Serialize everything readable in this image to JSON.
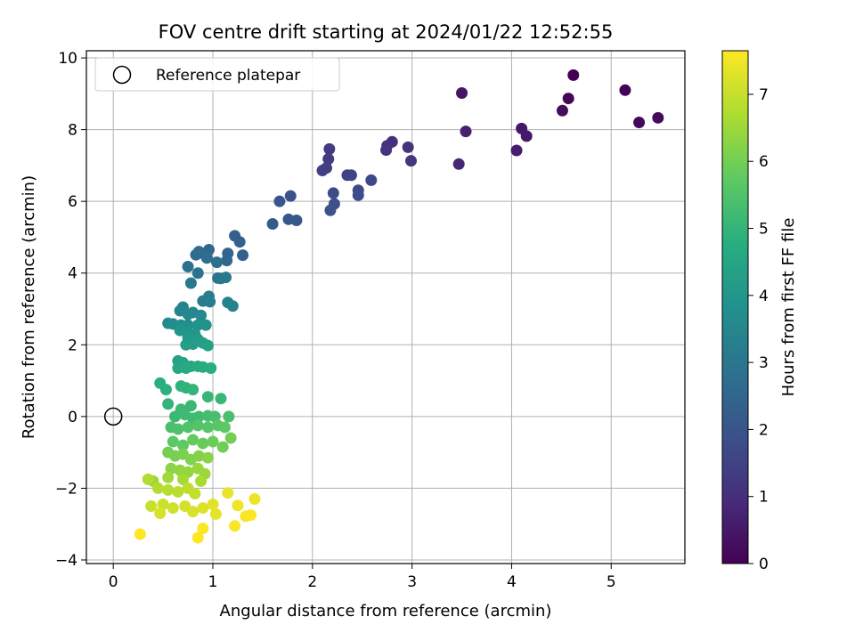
{
  "chart_data": {
    "type": "scatter",
    "title": "FOV centre drift starting at 2024/01/22 12:52:55",
    "xlabel": "Angular distance from reference (arcmin)",
    "ylabel": "Rotation from reference (arcmin)",
    "xlim": [
      -0.27,
      5.74
    ],
    "ylim": [
      -4.1,
      10.2
    ],
    "xticks": [
      0,
      1,
      2,
      3,
      4,
      5
    ],
    "yticks": [
      -4,
      -2,
      0,
      2,
      4,
      6,
      8,
      10
    ],
    "grid": true,
    "legend": {
      "position": "top-left",
      "entries": [
        "Reference platepar"
      ]
    },
    "reference_point": {
      "x": 0,
      "y": 0,
      "label": "Reference platepar"
    },
    "colorbar": {
      "label": "Hours from first FF file",
      "colormap": "viridis",
      "range": [
        0,
        7.65
      ],
      "ticks": [
        0,
        1,
        2,
        3,
        4,
        5,
        6,
        7
      ]
    },
    "points": [
      [
        4.62,
        9.52,
        0.0
      ],
      [
        5.14,
        9.1,
        0.05
      ],
      [
        4.57,
        8.87,
        0.1
      ],
      [
        5.28,
        8.2,
        0.15
      ],
      [
        5.47,
        8.33,
        0.2
      ],
      [
        4.51,
        8.53,
        0.25
      ],
      [
        3.5,
        9.02,
        0.45
      ],
      [
        4.1,
        8.03,
        0.5
      ],
      [
        4.15,
        7.82,
        0.55
      ],
      [
        4.05,
        7.42,
        0.6
      ],
      [
        3.54,
        7.95,
        0.7
      ],
      [
        3.47,
        7.04,
        0.8
      ],
      [
        2.8,
        7.66,
        1.0
      ],
      [
        2.75,
        7.55,
        1.05
      ],
      [
        2.96,
        7.51,
        1.1
      ],
      [
        2.74,
        7.43,
        1.15
      ],
      [
        2.99,
        7.13,
        1.2
      ],
      [
        2.17,
        7.46,
        1.3
      ],
      [
        2.16,
        7.18,
        1.35
      ],
      [
        2.14,
        6.93,
        1.4
      ],
      [
        2.1,
        6.86,
        1.45
      ],
      [
        2.35,
        6.73,
        1.5
      ],
      [
        2.39,
        6.73,
        1.55
      ],
      [
        2.59,
        6.59,
        1.65
      ],
      [
        2.46,
        6.31,
        1.7
      ],
      [
        2.21,
        6.23,
        1.75
      ],
      [
        2.46,
        6.17,
        1.8
      ],
      [
        2.22,
        5.93,
        1.85
      ],
      [
        2.18,
        5.75,
        1.9
      ],
      [
        1.78,
        6.15,
        1.95
      ],
      [
        1.67,
        6.0,
        2.0
      ],
      [
        1.76,
        5.5,
        2.05
      ],
      [
        1.84,
        5.47,
        2.1
      ],
      [
        1.6,
        5.37,
        2.15
      ],
      [
        1.22,
        5.04,
        2.3
      ],
      [
        1.27,
        4.87,
        2.35
      ],
      [
        1.3,
        4.5,
        2.4
      ],
      [
        1.15,
        4.55,
        2.45
      ],
      [
        1.14,
        4.35,
        2.5
      ],
      [
        0.96,
        4.65,
        2.55
      ],
      [
        0.9,
        4.55,
        2.6
      ],
      [
        0.83,
        4.51,
        2.65
      ],
      [
        0.86,
        4.6,
        2.7
      ],
      [
        0.94,
        4.42,
        2.75
      ],
      [
        1.04,
        4.3,
        2.8
      ],
      [
        0.75,
        4.18,
        2.85
      ],
      [
        0.85,
        4.0,
        2.9
      ],
      [
        1.05,
        3.86,
        2.95
      ],
      [
        1.08,
        3.85,
        3.0
      ],
      [
        1.13,
        3.88,
        3.05
      ],
      [
        0.78,
        3.72,
        3.1
      ],
      [
        0.96,
        3.35,
        3.15
      ],
      [
        0.9,
        3.22,
        3.2
      ],
      [
        0.97,
        3.2,
        3.25
      ],
      [
        1.15,
        3.18,
        3.3
      ],
      [
        1.2,
        3.08,
        3.35
      ],
      [
        0.7,
        3.05,
        3.4
      ],
      [
        0.67,
        2.95,
        3.45
      ],
      [
        0.8,
        2.9,
        3.5
      ],
      [
        0.75,
        2.85,
        3.55
      ],
      [
        0.88,
        2.82,
        3.6
      ],
      [
        0.55,
        2.6,
        3.65
      ],
      [
        0.6,
        2.58,
        3.7
      ],
      [
        0.68,
        2.55,
        3.75
      ],
      [
        0.75,
        2.55,
        3.8
      ],
      [
        0.85,
        2.55,
        3.85
      ],
      [
        0.93,
        2.55,
        3.9
      ],
      [
        0.67,
        2.4,
        3.95
      ],
      [
        0.75,
        2.35,
        4.0
      ],
      [
        0.82,
        2.3,
        4.05
      ],
      [
        0.75,
        2.2,
        4.1
      ],
      [
        0.85,
        2.15,
        4.15
      ],
      [
        0.8,
        2.02,
        4.2
      ],
      [
        0.73,
        2.0,
        4.25
      ],
      [
        0.9,
        2.05,
        4.3
      ],
      [
        0.95,
        1.98,
        4.35
      ],
      [
        0.65,
        1.55,
        4.4
      ],
      [
        0.7,
        1.5,
        4.45
      ],
      [
        0.78,
        1.4,
        4.5
      ],
      [
        0.65,
        1.35,
        4.55
      ],
      [
        0.73,
        1.35,
        4.6
      ],
      [
        0.85,
        1.4,
        4.65
      ],
      [
        0.9,
        1.38,
        4.7
      ],
      [
        0.98,
        1.35,
        4.75
      ],
      [
        0.47,
        0.93,
        4.8
      ],
      [
        0.53,
        0.75,
        4.85
      ],
      [
        0.68,
        0.85,
        4.9
      ],
      [
        0.73,
        0.8,
        4.95
      ],
      [
        0.8,
        0.75,
        5.0
      ],
      [
        0.55,
        0.35,
        5.0
      ],
      [
        0.95,
        0.55,
        5.05
      ],
      [
        1.08,
        0.5,
        5.1
      ],
      [
        0.78,
        0.3,
        5.1
      ],
      [
        0.68,
        0.2,
        5.15
      ],
      [
        0.62,
        0.0,
        5.15
      ],
      [
        0.72,
        0.05,
        5.2
      ],
      [
        0.8,
        -0.05,
        5.2
      ],
      [
        0.86,
        0.0,
        5.25
      ],
      [
        0.95,
        0.02,
        5.3
      ],
      [
        1.02,
        0.0,
        5.35
      ],
      [
        1.16,
        0.0,
        5.4
      ],
      [
        0.58,
        -0.3,
        5.4
      ],
      [
        0.65,
        -0.35,
        5.45
      ],
      [
        0.75,
        -0.3,
        5.5
      ],
      [
        0.85,
        -0.25,
        5.55
      ],
      [
        0.95,
        -0.3,
        5.6
      ],
      [
        1.05,
        -0.25,
        5.65
      ],
      [
        1.12,
        -0.3,
        5.7
      ],
      [
        0.6,
        -0.7,
        5.7
      ],
      [
        0.7,
        -0.8,
        5.75
      ],
      [
        0.8,
        -0.65,
        5.8
      ],
      [
        0.9,
        -0.75,
        5.85
      ],
      [
        1.0,
        -0.7,
        5.9
      ],
      [
        1.1,
        -0.85,
        5.95
      ],
      [
        1.18,
        -0.6,
        6.0
      ],
      [
        0.55,
        -1.0,
        6.0
      ],
      [
        0.62,
        -1.1,
        6.05
      ],
      [
        0.7,
        -1.05,
        6.1
      ],
      [
        0.78,
        -1.2,
        6.15
      ],
      [
        0.86,
        -1.1,
        6.2
      ],
      [
        0.95,
        -1.15,
        6.25
      ],
      [
        0.58,
        -1.45,
        6.3
      ],
      [
        0.67,
        -1.5,
        6.35
      ],
      [
        0.75,
        -1.55,
        6.4
      ],
      [
        0.85,
        -1.45,
        6.45
      ],
      [
        0.92,
        -1.6,
        6.5
      ],
      [
        0.4,
        -1.8,
        6.5
      ],
      [
        0.55,
        -1.7,
        6.55
      ],
      [
        0.7,
        -1.75,
        6.6
      ],
      [
        0.88,
        -1.8,
        6.65
      ],
      [
        0.35,
        -1.75,
        6.7
      ],
      [
        0.45,
        -2.0,
        6.75
      ],
      [
        0.55,
        -2.05,
        6.8
      ],
      [
        0.65,
        -2.1,
        6.85
      ],
      [
        0.75,
        -2.0,
        6.9
      ],
      [
        0.82,
        -2.15,
        6.95
      ],
      [
        0.38,
        -2.5,
        7.0
      ],
      [
        0.5,
        -2.45,
        7.05
      ],
      [
        0.6,
        -2.55,
        7.1
      ],
      [
        0.72,
        -2.5,
        7.15
      ],
      [
        0.8,
        -2.65,
        7.2
      ],
      [
        0.47,
        -2.7,
        7.2
      ],
      [
        0.9,
        -2.55,
        7.25
      ],
      [
        1.0,
        -2.45,
        7.3
      ],
      [
        1.03,
        -2.72,
        7.35
      ],
      [
        1.15,
        -2.13,
        7.4
      ],
      [
        1.42,
        -2.3,
        7.45
      ],
      [
        1.25,
        -2.48,
        7.5
      ],
      [
        1.33,
        -2.78,
        7.55
      ],
      [
        1.38,
        -2.75,
        7.6
      ],
      [
        1.22,
        -3.05,
        7.6
      ],
      [
        0.9,
        -3.12,
        7.62
      ],
      [
        0.85,
        -3.38,
        7.65
      ],
      [
        0.27,
        -3.28,
        7.65
      ]
    ]
  }
}
